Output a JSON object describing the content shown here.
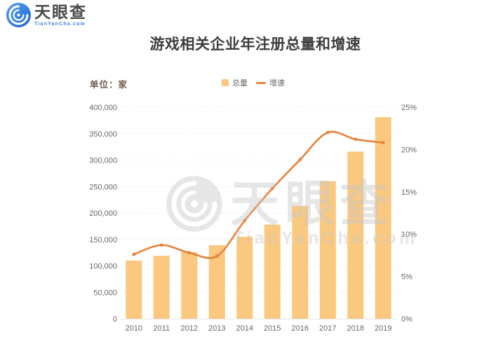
{
  "header": {
    "logo_text": "天眼查",
    "logo_subtext": "TianYanCha.com",
    "logo_color": "#2e78df"
  },
  "unit_label": "单位：家",
  "watermark": {
    "text": "天眼查",
    "subtext": "TianYanCha.com"
  },
  "chart_data": {
    "type": "bar+line",
    "title": "游戏相关企业年注册总量和增速",
    "categories": [
      "2010",
      "2011",
      "2012",
      "2013",
      "2014",
      "2015",
      "2016",
      "2017",
      "2018",
      "2019"
    ],
    "series": [
      {
        "name": "总量",
        "type": "bar",
        "axis": "left",
        "color": "#FAC87E",
        "values": [
          110000,
          119000,
          126000,
          139000,
          155000,
          178000,
          213000,
          260000,
          316000,
          381000
        ]
      },
      {
        "name": "增速",
        "type": "line",
        "axis": "right",
        "color": "#E8823A",
        "values": [
          7.6,
          8.7,
          7.8,
          7.4,
          11.6,
          15.4,
          18.8,
          22.0,
          21.2,
          20.8
        ]
      }
    ],
    "left_axis": {
      "min": 0,
      "max": 400000,
      "tick_step": 50000,
      "ticks": [
        "0",
        "50,000",
        "100,000",
        "150,000",
        "200,000",
        "250,000",
        "300,000",
        "350,000",
        "400,000"
      ]
    },
    "right_axis": {
      "min": 0,
      "max": 25,
      "tick_step": 5,
      "ticks": [
        "0%",
        "5%",
        "10%",
        "15%",
        "20%",
        "25%"
      ]
    },
    "grid": "dashed-horizontal",
    "legend_position": "top-center"
  }
}
